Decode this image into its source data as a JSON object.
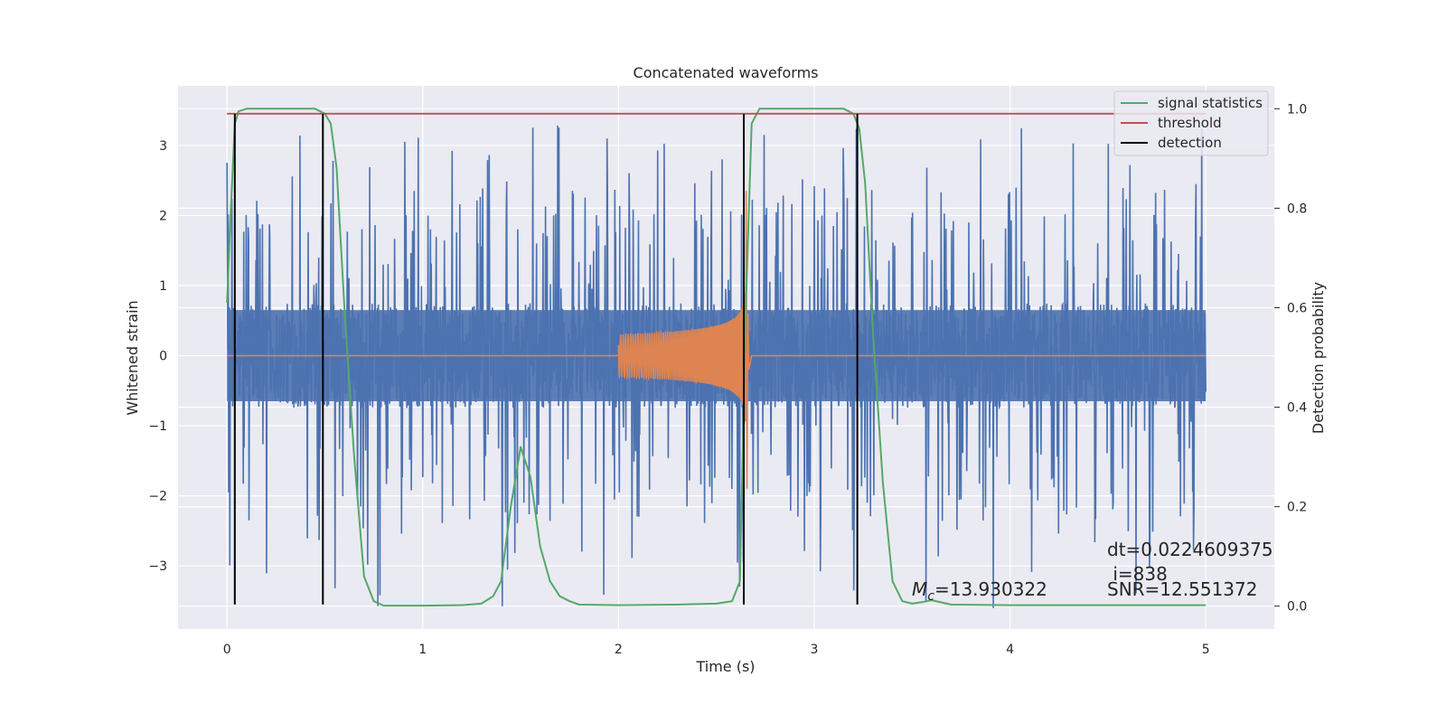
{
  "chart_data": {
    "type": "line",
    "title": "Concatenated waveforms",
    "xlabel": "Time (s)",
    "ylabel": "Whitened strain",
    "y2label": "Detection probability",
    "xlim": [
      -0.25,
      5.35
    ],
    "ylim": [
      -3.9,
      3.85
    ],
    "y2lim": [
      -0.046,
      1.046
    ],
    "xticks": [
      0,
      1,
      2,
      3,
      4,
      5
    ],
    "yticks": [
      -3,
      -2,
      -1,
      0,
      1,
      2,
      3
    ],
    "y2ticks": [
      0.0,
      0.2,
      0.4,
      0.6,
      0.8,
      1.0
    ],
    "y2tick_labels": [
      "0.0",
      "0.2",
      "0.4",
      "0.6",
      "0.8",
      "1.0"
    ],
    "grid": true,
    "legend_position": "top-right",
    "background": "#EAEAF2",
    "colors": {
      "strain": "#4C72B0",
      "waveform": "#DD8452",
      "statistics": "#55A868",
      "threshold": "#C44E52",
      "detection": "#000000"
    },
    "strain_noise": {
      "x_range": [
        0,
        5
      ],
      "core_amplitude": 0.65,
      "spike_max": 3.3,
      "spike_min": -3.6
    },
    "waveform": {
      "x_start": 2.0,
      "x_merger": 2.65,
      "x_end": 2.68,
      "start_amplitude": 0.3,
      "peak": 2.35,
      "trough": -1.9
    },
    "signal_statistics": {
      "x": [
        0,
        0.02,
        0.04,
        0.06,
        0.1,
        0.2,
        0.3,
        0.45,
        0.5,
        0.53,
        0.56,
        0.6,
        0.65,
        0.7,
        0.75,
        0.8,
        1.0,
        1.2,
        1.3,
        1.36,
        1.4,
        1.45,
        1.5,
        1.55,
        1.6,
        1.65,
        1.7,
        1.75,
        1.8,
        2.0,
        2.3,
        2.5,
        2.58,
        2.62,
        2.65,
        2.68,
        2.72,
        2.8,
        3.0,
        3.15,
        3.2,
        3.23,
        3.26,
        3.3,
        3.35,
        3.4,
        3.45,
        3.5,
        3.55,
        3.6,
        3.7,
        4.0,
        4.5,
        5.0
      ],
      "y": [
        0.61,
        0.8,
        0.97,
        0.995,
        1.0,
        1.0,
        1.0,
        1.0,
        0.99,
        0.97,
        0.88,
        0.6,
        0.3,
        0.06,
        0.01,
        0.001,
        0.001,
        0.002,
        0.005,
        0.02,
        0.05,
        0.2,
        0.32,
        0.26,
        0.12,
        0.05,
        0.02,
        0.01,
        0.003,
        0.002,
        0.003,
        0.005,
        0.01,
        0.05,
        0.6,
        0.97,
        1.0,
        1.0,
        1.0,
        1.0,
        0.99,
        0.96,
        0.85,
        0.55,
        0.25,
        0.05,
        0.01,
        0.005,
        0.008,
        0.012,
        0.003,
        0.002,
        0.002,
        0.002
      ]
    },
    "threshold": 0.99,
    "detections": [
      0.04,
      0.49,
      2.64,
      3.22
    ],
    "detection_y": [
      -3.55,
      3.45
    ],
    "series": [
      {
        "name": "signal statistics"
      },
      {
        "name": "threshold"
      },
      {
        "name": "detection"
      }
    ],
    "annotations": {
      "dt": "dt=0.0224609375",
      "i": " i=838",
      "mc_symbol": "M",
      "mc_sub": "c",
      "mc_value": "=13.930322",
      "snr": "SNR=12.551372"
    }
  }
}
